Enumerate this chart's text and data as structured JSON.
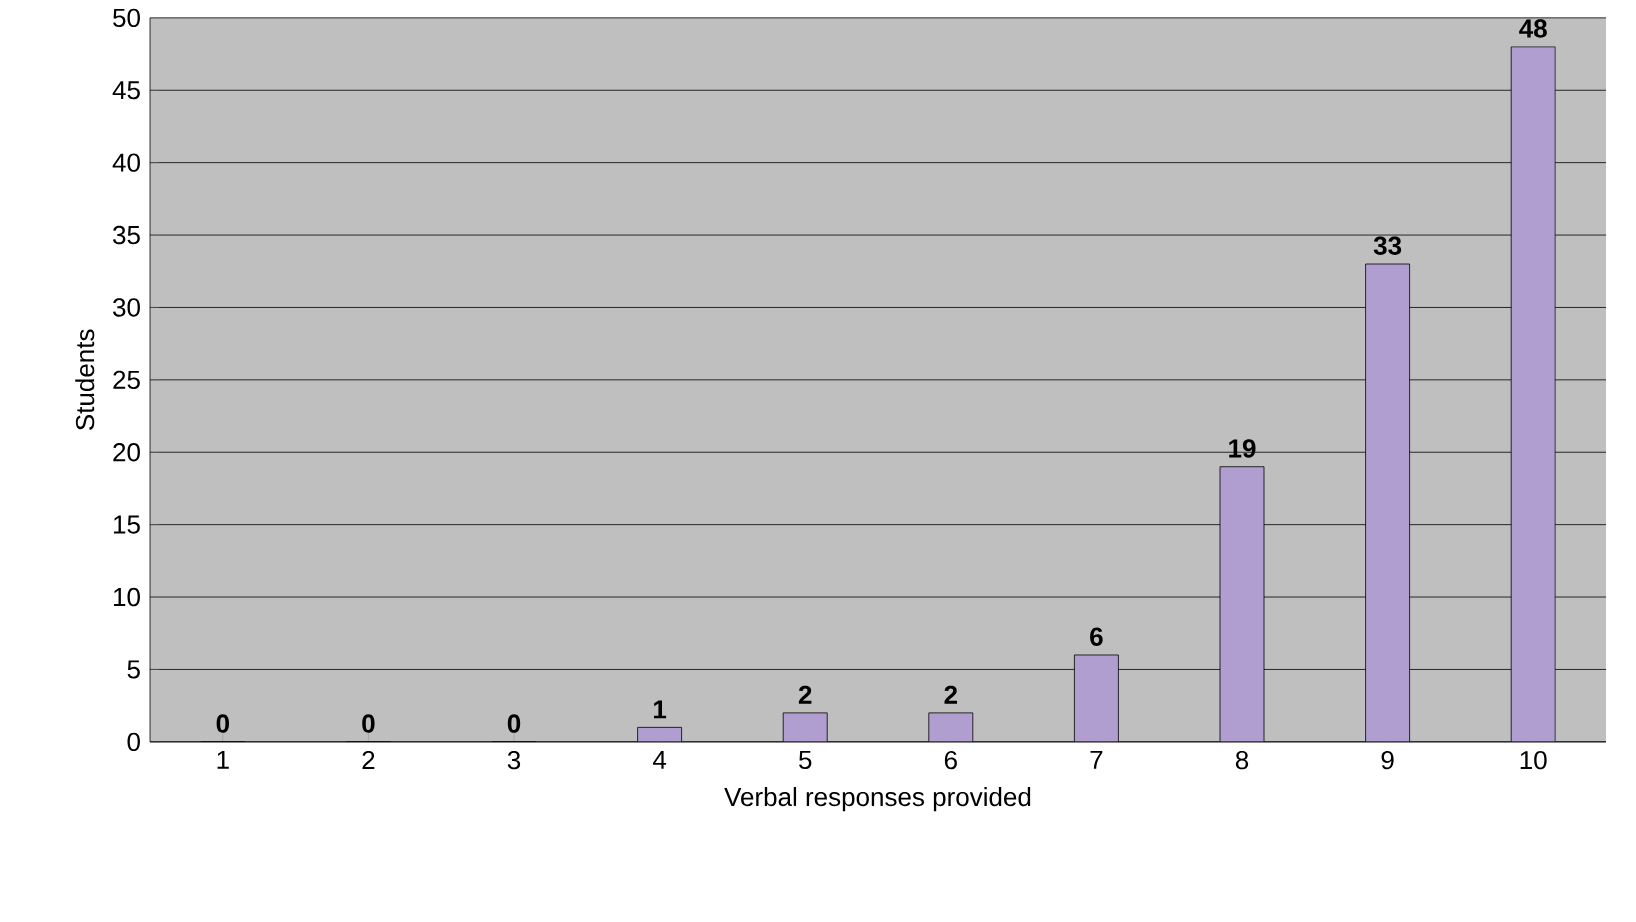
{
  "chart_data": {
    "type": "bar",
    "xlabel": "Verbal responses provided",
    "ylabel": "Students",
    "categories": [
      "1",
      "2",
      "3",
      "4",
      "5",
      "6",
      "7",
      "8",
      "9",
      "10"
    ],
    "values": [
      0,
      0,
      0,
      1,
      2,
      2,
      6,
      19,
      33,
      48
    ],
    "color": "#b09ed0",
    "data_labels": true,
    "ylim": [
      0,
      50
    ],
    "yticks": [
      0,
      5,
      10,
      15,
      20,
      25,
      30,
      35,
      40,
      45,
      50
    ],
    "grid": "y"
  }
}
